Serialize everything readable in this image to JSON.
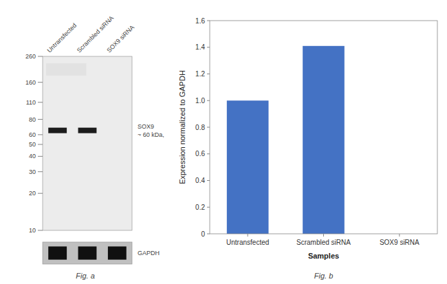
{
  "chart_data": [
    {
      "type": "blot",
      "categories": [
        "Untransfected",
        "Scrambled siRNA",
        "SOX9 siRNA"
      ],
      "series": [
        {
          "name": "SOX9",
          "values": [
            65,
            65,
            null
          ]
        }
      ],
      "ylim": [
        10,
        260
      ],
      "yticks": [
        260,
        160,
        110,
        80,
        60,
        50,
        40,
        30,
        20,
        10
      ],
      "log": "y",
      "grid": false,
      "annotations": [
        "~ 60 kDa,",
        "GAPDH",
        "Fig. a"
      ]
    },
    {
      "type": "bar",
      "categories": [
        "Untransfected",
        "Scrambled siRNA",
        "SOX9 siRNA"
      ],
      "values": [
        1.0,
        1.41,
        0.0
      ],
      "color": "#4472c4",
      "ylim": [
        0,
        1.6
      ],
      "yticks": [
        0,
        0.2,
        0.4,
        0.6,
        0.8,
        {
          "value": 1.0,
          "label": "1.0"
        },
        1.2,
        1.4,
        1.6
      ],
      "ylabel": "Expression normalized to GAPDH",
      "xlabel": "Samples",
      "grid": false,
      "annotations": [
        "Fig. b"
      ]
    }
  ]
}
